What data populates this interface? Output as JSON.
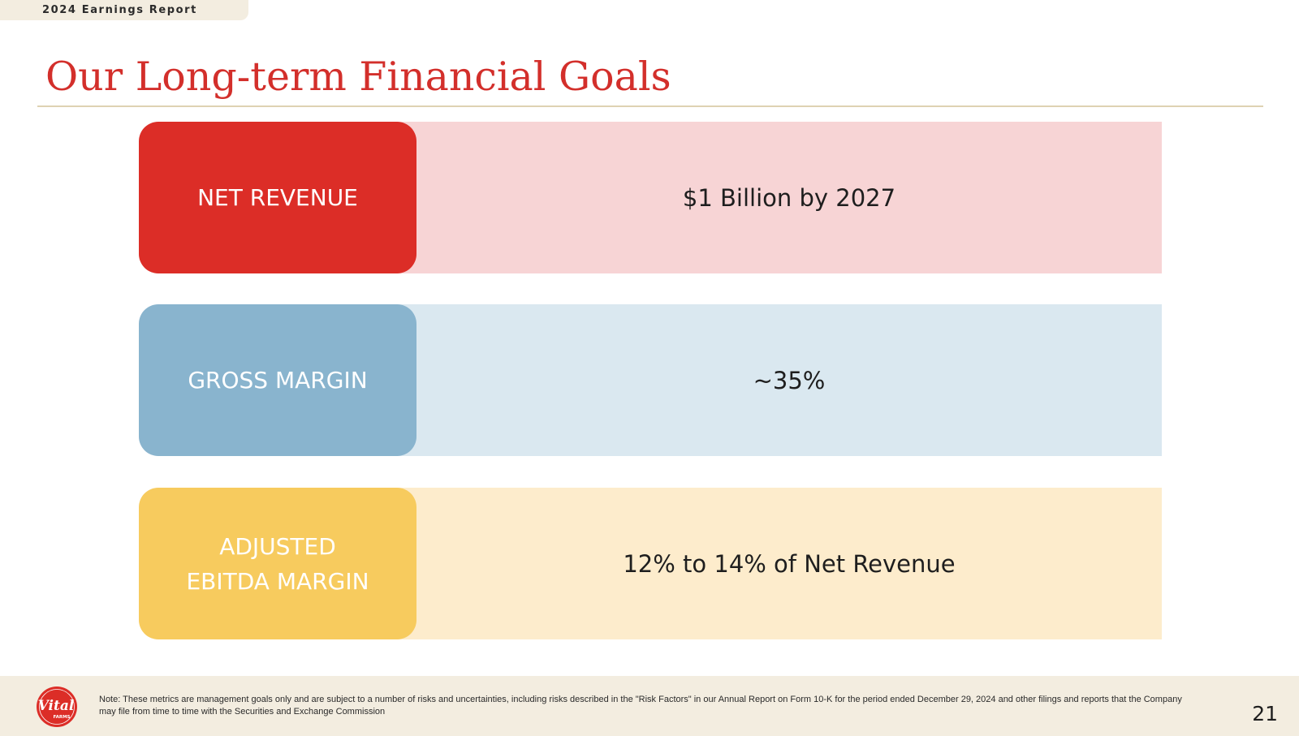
{
  "header": {
    "report_label": "2024 Earnings Report",
    "title": "Our Long-term Financial Goals"
  },
  "goals": [
    {
      "label": "NET REVENUE",
      "value": "$1 Billion by 2027",
      "pill_color": "#dc2d27",
      "band_color": "#f7d4d5"
    },
    {
      "label": "GROSS MARGIN",
      "value": "~35%",
      "pill_color": "#89b4ce",
      "band_color": "#dae8f0"
    },
    {
      "label": "ADJUSTED\nEBITDA MARGIN",
      "value": "12% to 14% of Net Revenue",
      "pill_color": "#f7cb5e",
      "band_color": "#fdeccc"
    }
  ],
  "footer": {
    "logo": {
      "icon": "vital-farms-logo",
      "text": "Vital",
      "subtext": "FARMS",
      "color": "#dc2d27"
    },
    "note": "Note: These metrics are management goals only and are subject to a number of risks and uncertainties, including risks described in the \"Risk Factors\" in our Annual Report on Form 10-K for the period ended December 29, 2024 and other filings and reports that the Company may file from time to time with the Securities and Exchange Commission",
    "page_number": "21"
  }
}
